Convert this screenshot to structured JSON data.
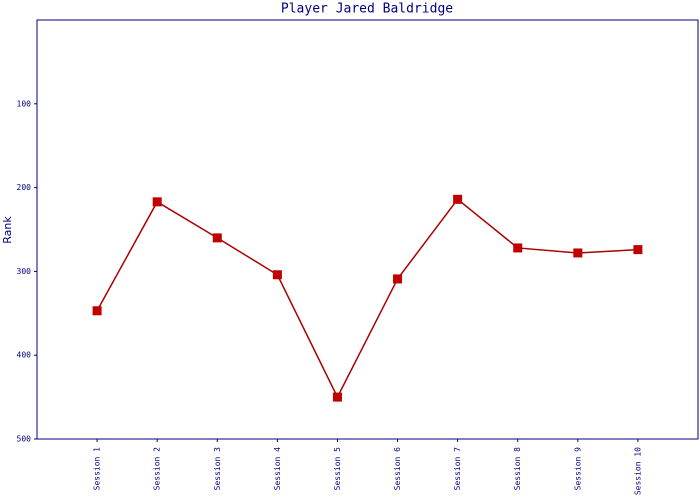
{
  "chart_data": {
    "type": "line",
    "title": "Player Jared Baldridge",
    "ylabel": "Rank",
    "categories": [
      "Session 1",
      "Session 2",
      "Session 3",
      "Session 4",
      "Session 5",
      "Session 6",
      "Session 7",
      "Session 8",
      "Session 9",
      "Session 10"
    ],
    "series": [
      {
        "color": "#aa0000",
        "marker_color": "#c00000",
        "values": [
          347,
          217,
          260,
          304,
          450,
          309,
          214,
          272,
          278,
          274
        ]
      }
    ],
    "ylim": [
      500,
      0
    ],
    "yticks": [
      100,
      200,
      300,
      400,
      500
    ],
    "grid": false
  }
}
